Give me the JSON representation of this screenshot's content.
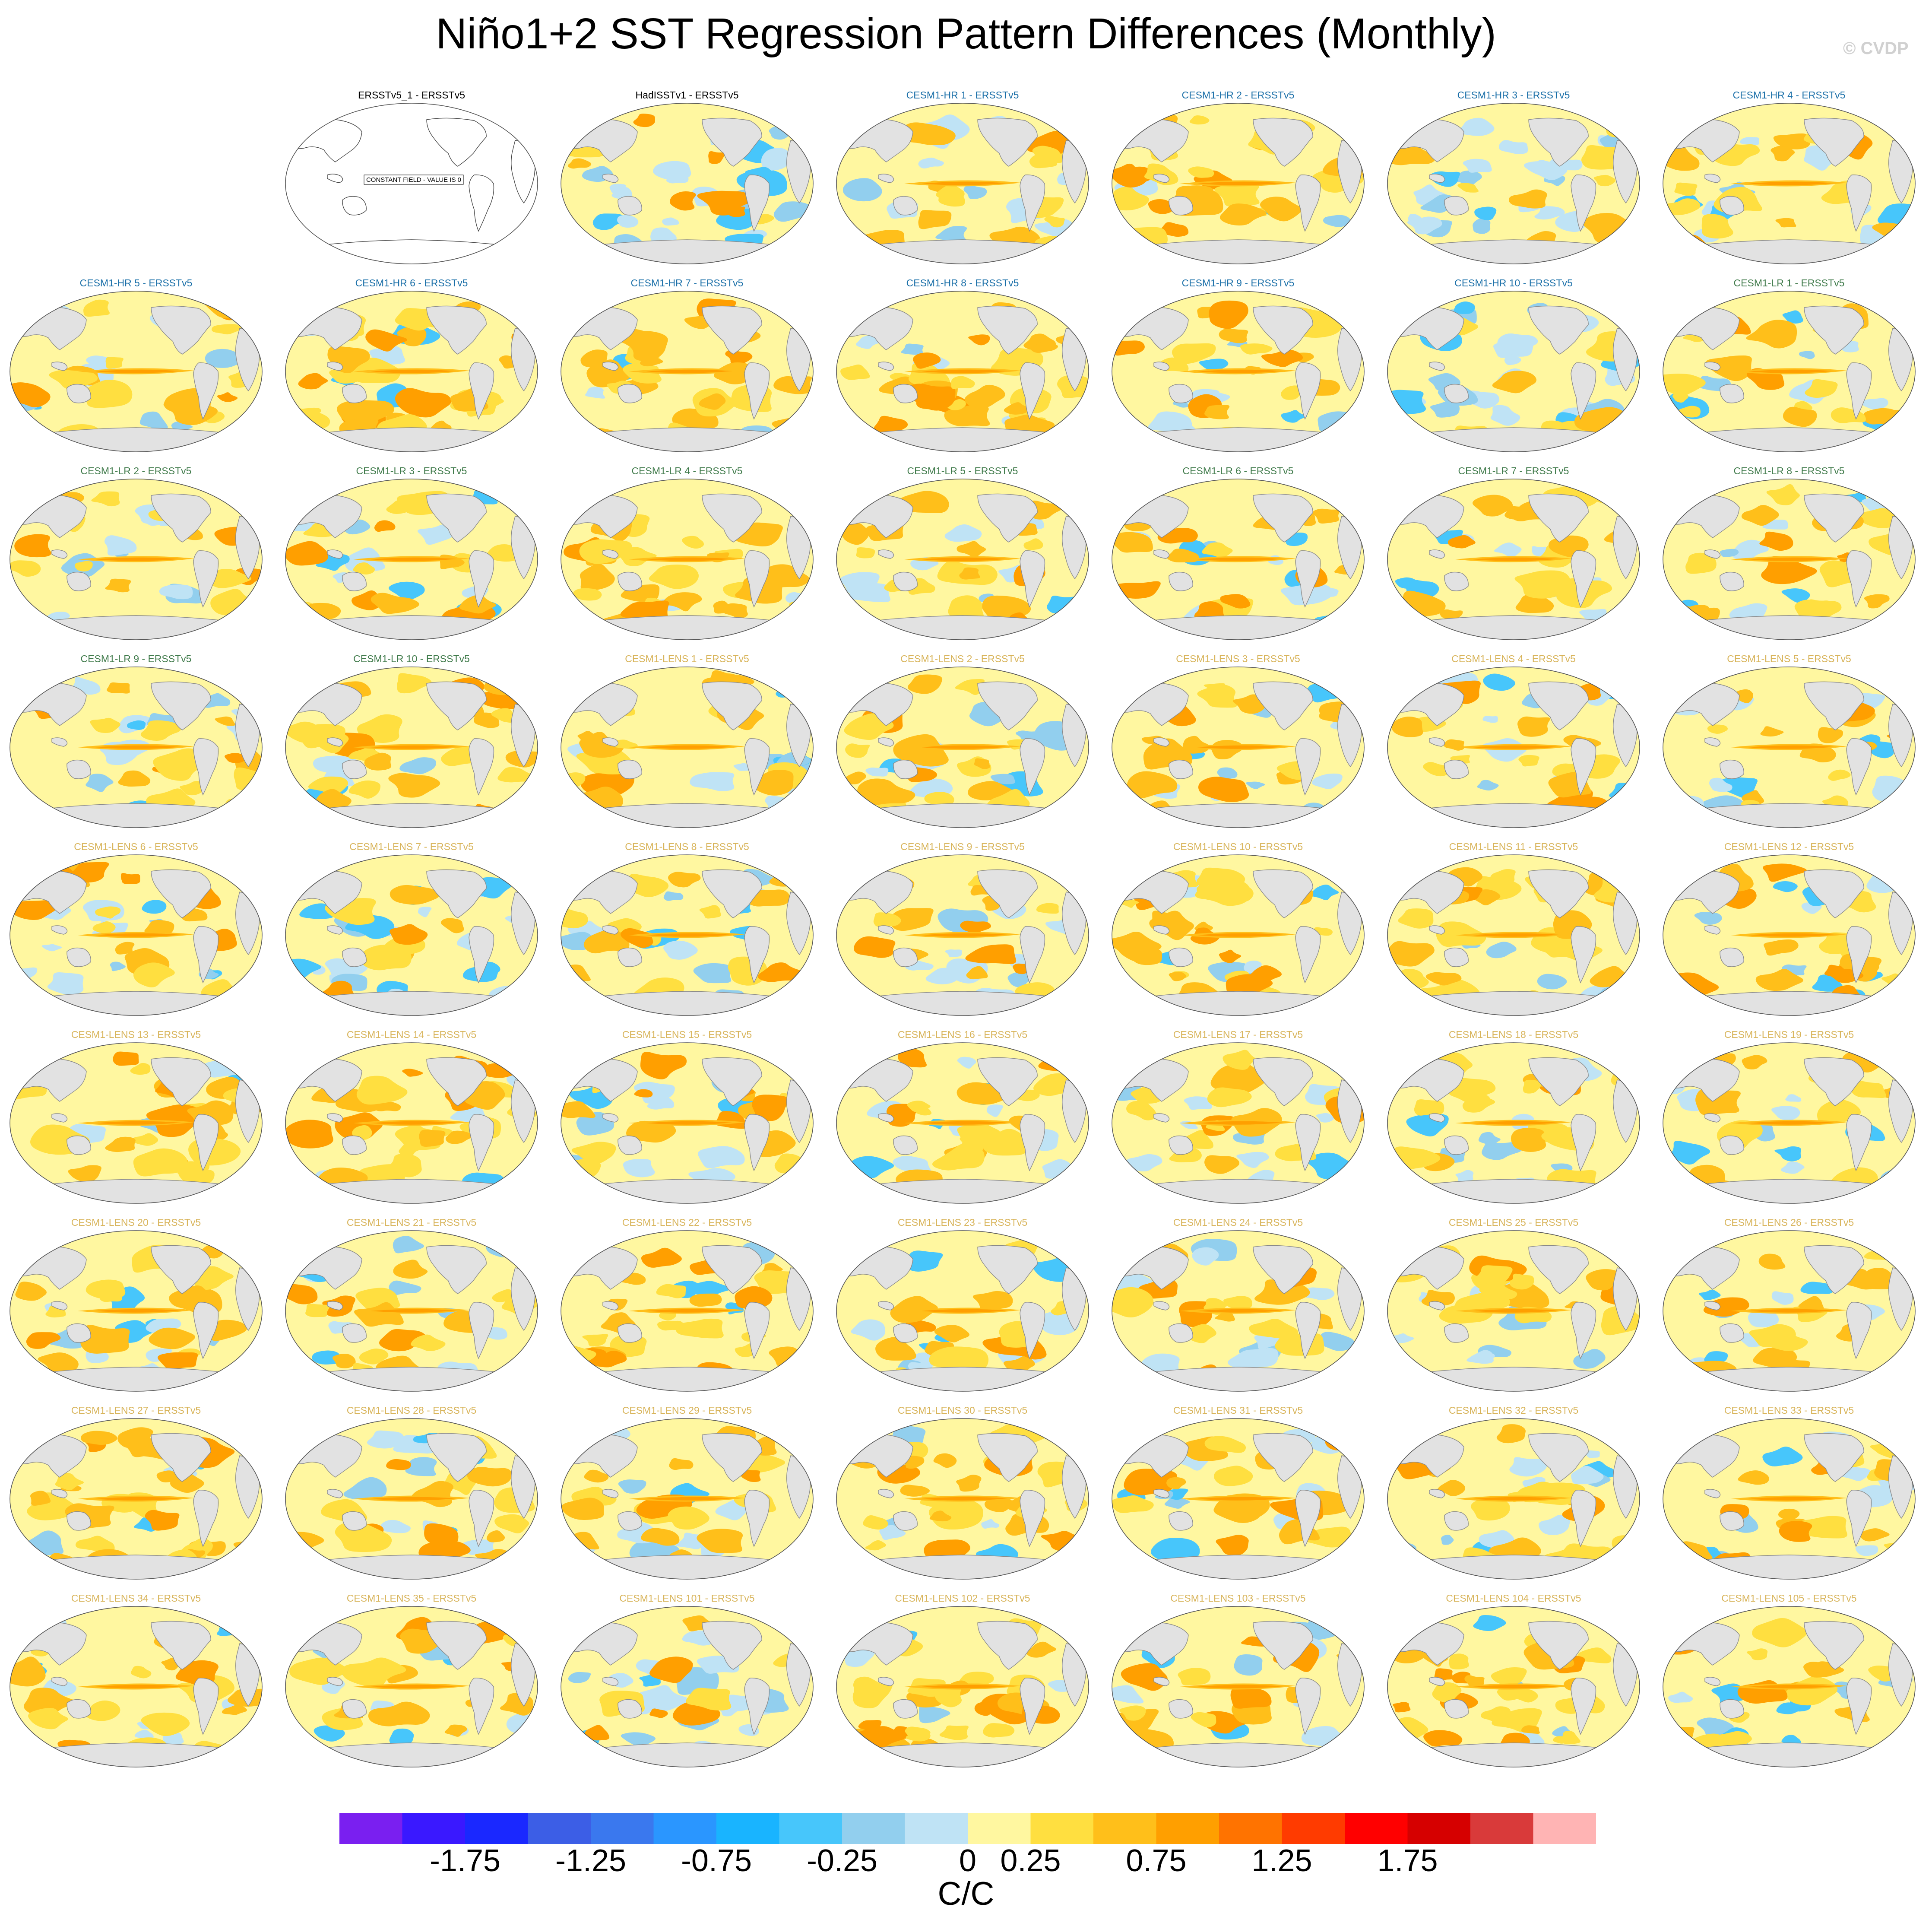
{
  "title": "Niño1+2 SST Regression Pattern Differences (Monthly)",
  "credit": "© CVDP",
  "units": "C/C",
  "constant_field_note": "CONSTANT FIELD - VALUE IS 0",
  "colors": {
    "ocean_base": "#fff7a0",
    "land": "#e2e2e2",
    "coast": "#8a8a8a",
    "label_obs": "#000000",
    "label_hr": "#1a6fa8",
    "label_lr": "#3f7a4a",
    "label_lens": "#d8b45a"
  },
  "colorbar": {
    "colors": [
      "#7a1ff0",
      "#3a18ff",
      "#1a28ff",
      "#3c5ee6",
      "#3a78ee",
      "#2a96ff",
      "#19b4ff",
      "#47c6fb",
      "#92cfee",
      "#bfe3f5",
      "#fff7a0",
      "#ffdf40",
      "#ffbf1a",
      "#ff9f00",
      "#ff7300",
      "#ff3b00",
      "#ff0000",
      "#d60000",
      "#d93a3a",
      "#ffb4b4"
    ],
    "ticks": [
      "-1.75",
      "-1.25",
      "-0.75",
      "-0.25",
      "0",
      "0.25",
      "0.75",
      "1.25",
      "1.75"
    ],
    "tick_boundary_index": [
      2,
      4,
      6,
      8,
      10,
      11,
      13,
      15,
      17
    ]
  },
  "panels": [
    {
      "label": "ERSSTv5_1 - ERSSTv5",
      "group": "obs",
      "pattern": "constant"
    },
    {
      "label": "HadISSTv1 - ERSSTv5",
      "group": "obs",
      "pattern": "cool"
    },
    {
      "label": "CESM1-HR 1 - ERSSTv5",
      "group": "hr",
      "pattern": "mixed"
    },
    {
      "label": "CESM1-HR 2 - ERSSTv5",
      "group": "hr",
      "pattern": "warm"
    },
    {
      "label": "CESM1-HR 3 - ERSSTv5",
      "group": "hr",
      "pattern": "cool"
    },
    {
      "label": "CESM1-HR 4 - ERSSTv5",
      "group": "hr",
      "pattern": "mixed"
    },
    {
      "label": "CESM1-HR 5 - ERSSTv5",
      "group": "hr",
      "pattern": "mixed"
    },
    {
      "label": "CESM1-HR 6 - ERSSTv5",
      "group": "hr",
      "pattern": "warm"
    },
    {
      "label": "CESM1-HR 7 - ERSSTv5",
      "group": "hr",
      "pattern": "warm"
    },
    {
      "label": "CESM1-HR 8 - ERSSTv5",
      "group": "hr",
      "pattern": "warm"
    },
    {
      "label": "CESM1-HR 9 - ERSSTv5",
      "group": "hr",
      "pattern": "mixed"
    },
    {
      "label": "CESM1-HR 10 - ERSSTv5",
      "group": "hr",
      "pattern": "cool"
    },
    {
      "label": "CESM1-LR 1 - ERSSTv5",
      "group": "lr",
      "pattern": "mixed"
    },
    {
      "label": "CESM1-LR 2 - ERSSTv5",
      "group": "lr",
      "pattern": "mixed"
    },
    {
      "label": "CESM1-LR 3 - ERSSTv5",
      "group": "lr",
      "pattern": "mixed"
    },
    {
      "label": "CESM1-LR 4 - ERSSTv5",
      "group": "lr",
      "pattern": "warm"
    },
    {
      "label": "CESM1-LR 5 - ERSSTv5",
      "group": "lr",
      "pattern": "mixed"
    },
    {
      "label": "CESM1-LR 6 - ERSSTv5",
      "group": "lr",
      "pattern": "mixed"
    },
    {
      "label": "CESM1-LR 7 - ERSSTv5",
      "group": "lr",
      "pattern": "mixed"
    },
    {
      "label": "CESM1-LR 8 - ERSSTv5",
      "group": "lr",
      "pattern": "mixed"
    },
    {
      "label": "CESM1-LR 9 - ERSSTv5",
      "group": "lr",
      "pattern": "mixed"
    },
    {
      "label": "CESM1-LR 10 - ERSSTv5",
      "group": "lr",
      "pattern": "warm"
    },
    {
      "label": "CESM1-LENS 1 - ERSSTv5",
      "group": "lens",
      "pattern": "mixed"
    },
    {
      "label": "CESM1-LENS 2 - ERSSTv5",
      "group": "lens",
      "pattern": "mixed"
    },
    {
      "label": "CESM1-LENS 3 - ERSSTv5",
      "group": "lens",
      "pattern": "mixed"
    },
    {
      "label": "CESM1-LENS 4 - ERSSTv5",
      "group": "lens",
      "pattern": "mixed"
    },
    {
      "label": "CESM1-LENS 5 - ERSSTv5",
      "group": "lens",
      "pattern": "mixed"
    },
    {
      "label": "CESM1-LENS 6 - ERSSTv5",
      "group": "lens",
      "pattern": "mixed"
    },
    {
      "label": "CESM1-LENS 7 - ERSSTv5",
      "group": "lens",
      "pattern": "cool"
    },
    {
      "label": "CESM1-LENS 8 - ERSSTv5",
      "group": "lens",
      "pattern": "mixed"
    },
    {
      "label": "CESM1-LENS 9 - ERSSTv5",
      "group": "lens",
      "pattern": "mixed"
    },
    {
      "label": "CESM1-LENS 10 - ERSSTv5",
      "group": "lens",
      "pattern": "warm"
    },
    {
      "label": "CESM1-LENS 11 - ERSSTv5",
      "group": "lens",
      "pattern": "warm"
    },
    {
      "label": "CESM1-LENS 12 - ERSSTv5",
      "group": "lens",
      "pattern": "mixed"
    },
    {
      "label": "CESM1-LENS 13 - ERSSTv5",
      "group": "lens",
      "pattern": "warm"
    },
    {
      "label": "CESM1-LENS 14 - ERSSTv5",
      "group": "lens",
      "pattern": "warm"
    },
    {
      "label": "CESM1-LENS 15 - ERSSTv5",
      "group": "lens",
      "pattern": "mixed"
    },
    {
      "label": "CESM1-LENS 16 - ERSSTv5",
      "group": "lens",
      "pattern": "mixed"
    },
    {
      "label": "CESM1-LENS 17 - ERSSTv5",
      "group": "lens",
      "pattern": "mixed"
    },
    {
      "label": "CESM1-LENS 18 - ERSSTv5",
      "group": "lens",
      "pattern": "mixed"
    },
    {
      "label": "CESM1-LENS 19 - ERSSTv5",
      "group": "lens",
      "pattern": "mixed"
    },
    {
      "label": "CESM1-LENS 20 - ERSSTv5",
      "group": "lens",
      "pattern": "mixed"
    },
    {
      "label": "CESM1-LENS 21 - ERSSTv5",
      "group": "lens",
      "pattern": "mixed"
    },
    {
      "label": "CESM1-LENS 22 - ERSSTv5",
      "group": "lens",
      "pattern": "warm"
    },
    {
      "label": "CESM1-LENS 23 - ERSSTv5",
      "group": "lens",
      "pattern": "mixed"
    },
    {
      "label": "CESM1-LENS 24 - ERSSTv5",
      "group": "lens",
      "pattern": "mixed"
    },
    {
      "label": "CESM1-LENS 25 - ERSSTv5",
      "group": "lens",
      "pattern": "mixed"
    },
    {
      "label": "CESM1-LENS 26 - ERSSTv5",
      "group": "lens",
      "pattern": "mixed"
    },
    {
      "label": "CESM1-LENS 27 - ERSSTv5",
      "group": "lens",
      "pattern": "warm"
    },
    {
      "label": "CESM1-LENS 28 - ERSSTv5",
      "group": "lens",
      "pattern": "mixed"
    },
    {
      "label": "CESM1-LENS 29 - ERSSTv5",
      "group": "lens",
      "pattern": "mixed"
    },
    {
      "label": "CESM1-LENS 30 - ERSSTv5",
      "group": "lens",
      "pattern": "warm"
    },
    {
      "label": "CESM1-LENS 31 - ERSSTv5",
      "group": "lens",
      "pattern": "mixed"
    },
    {
      "label": "CESM1-LENS 32 - ERSSTv5",
      "group": "lens",
      "pattern": "mixed"
    },
    {
      "label": "CESM1-LENS 33 - ERSSTv5",
      "group": "lens",
      "pattern": "mixed"
    },
    {
      "label": "CESM1-LENS 34 - ERSSTv5",
      "group": "lens",
      "pattern": "mixed"
    },
    {
      "label": "CESM1-LENS 35 - ERSSTv5",
      "group": "lens",
      "pattern": "mixed"
    },
    {
      "label": "CESM1-LENS 101 - ERSSTv5",
      "group": "lens",
      "pattern": "cool"
    },
    {
      "label": "CESM1-LENS 102 - ERSSTv5",
      "group": "lens",
      "pattern": "warm"
    },
    {
      "label": "CESM1-LENS 103 - ERSSTv5",
      "group": "lens",
      "pattern": "mixed"
    },
    {
      "label": "CESM1-LENS 104 - ERSSTv5",
      "group": "lens",
      "pattern": "warm"
    },
    {
      "label": "CESM1-LENS 105 - ERSSTv5",
      "group": "lens",
      "pattern": "mixed"
    }
  ]
}
